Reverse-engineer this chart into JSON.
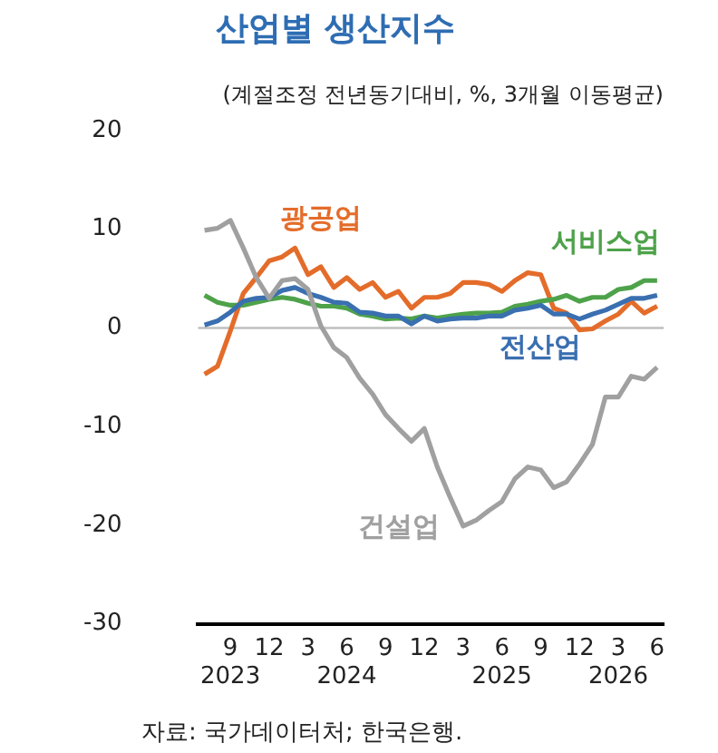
{
  "chart_data": {
    "type": "line",
    "title": "산업별 생산지수",
    "subtitle": "(계절조정 전년동기대비, %, 3개월 이동평균)",
    "categories": [
      null,
      null,
      "9\n2023",
      null,
      null,
      "12",
      null,
      null,
      "3",
      null,
      null,
      "6\n2024",
      null,
      null,
      "9",
      null,
      null,
      "12",
      null,
      null,
      "3",
      null,
      null,
      "6\n2025",
      null,
      null,
      "9",
      null,
      null,
      "12",
      null,
      null,
      "3\n2026",
      null,
      null,
      "6"
    ],
    "series": [
      {
        "name": "광공업",
        "color": "#e46c2a",
        "values": [
          -4.7,
          -3.9,
          -0.3,
          3.5,
          5.1,
          6.8,
          7.2,
          8.1,
          5.4,
          6.2,
          4.1,
          5.1,
          3.9,
          4.6,
          3.1,
          3.7,
          2.0,
          3.1,
          3.1,
          3.5,
          4.6,
          4.6,
          4.4,
          3.7,
          4.8,
          5.6,
          5.4,
          2.0,
          1.5,
          -0.2,
          -0.1,
          0.7,
          1.4,
          2.7,
          1.5,
          2.2
        ]
      },
      {
        "name": "서비스업",
        "color": "#4ea24a",
        "values": [
          3.3,
          2.6,
          2.3,
          2.3,
          2.6,
          2.9,
          3.1,
          2.9,
          2.5,
          2.2,
          2.2,
          2.0,
          1.4,
          1.2,
          0.9,
          1.0,
          0.9,
          1.2,
          1.0,
          1.2,
          1.4,
          1.5,
          1.5,
          1.6,
          2.2,
          2.4,
          2.7,
          2.9,
          3.3,
          2.7,
          3.1,
          3.1,
          3.9,
          4.1,
          4.8,
          4.8
        ]
      },
      {
        "name": "전산업",
        "color": "#3a6fb0",
        "values": [
          0.3,
          0.7,
          1.6,
          2.7,
          3.0,
          3.1,
          3.8,
          4.1,
          3.5,
          3.1,
          2.6,
          2.5,
          1.6,
          1.5,
          1.2,
          1.2,
          0.4,
          1.2,
          0.7,
          0.9,
          1.0,
          1.0,
          1.2,
          1.2,
          1.8,
          2.0,
          2.3,
          1.4,
          1.4,
          0.9,
          1.4,
          1.8,
          2.4,
          3.0,
          3.0,
          3.3
        ]
      },
      {
        "name": "건설업",
        "color": "#a0a0a0",
        "values": [
          9.9,
          10.1,
          10.9,
          8.1,
          5.1,
          3.0,
          4.8,
          5.0,
          3.9,
          0.2,
          -2.0,
          -3.0,
          -5.1,
          -6.7,
          -8.8,
          -10.2,
          -11.5,
          -10.2,
          -14.1,
          -17.2,
          -20.1,
          -19.5,
          -18.5,
          -17.6,
          -15.3,
          -14.1,
          -14.4,
          -16.2,
          -15.6,
          -13.8,
          -11.8,
          -7.0,
          -7.0,
          -4.9,
          -5.2,
          -4.0
        ]
      }
    ],
    "ylim": [
      -30,
      20
    ],
    "yticks": [
      -30,
      -20,
      -10,
      0,
      10,
      20
    ],
    "ref_lines": [
      {
        "axis": "y",
        "value": 0,
        "color": "#bfbfbf"
      }
    ],
    "annotations": [
      "자료: 국가데이터처; 한국은행."
    ],
    "grid": false,
    "legend": false,
    "marker": "none",
    "line_style": "solid"
  }
}
